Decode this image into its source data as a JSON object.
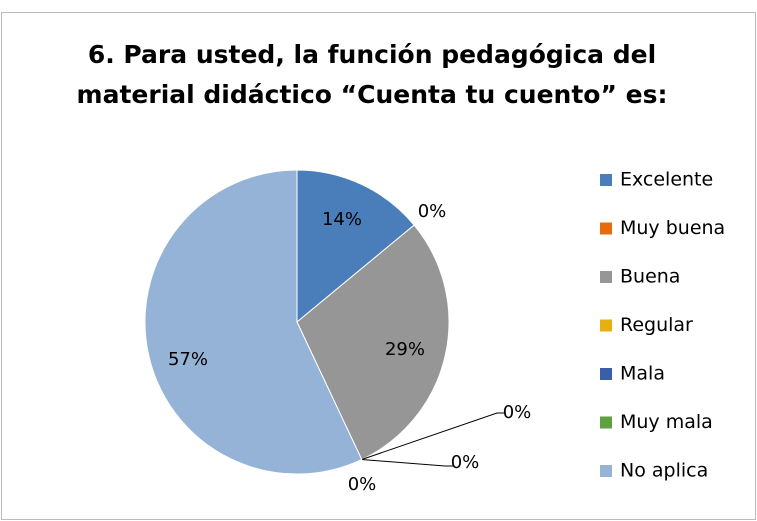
{
  "chart_data": {
    "type": "pie",
    "title": [
      "6. Para usted, la función pedagógica del",
      "material didáctico “Cuenta tu cuento” es:"
    ],
    "categories": [
      "Excelente",
      "Muy buena",
      "Buena",
      "Regular",
      "Mala",
      "Muy mala",
      "No aplica"
    ],
    "values": [
      14,
      0,
      29,
      0,
      0,
      0,
      57
    ],
    "value_labels": [
      "14%",
      "0%",
      "29%",
      "0%",
      "0%",
      "0%",
      "57%"
    ],
    "colors": [
      "#4a7ebb",
      "#e46c0a",
      "#969696",
      "#e6b010",
      "#3a5faa",
      "#5fa040",
      "#95b3d7"
    ],
    "legend": "right"
  }
}
